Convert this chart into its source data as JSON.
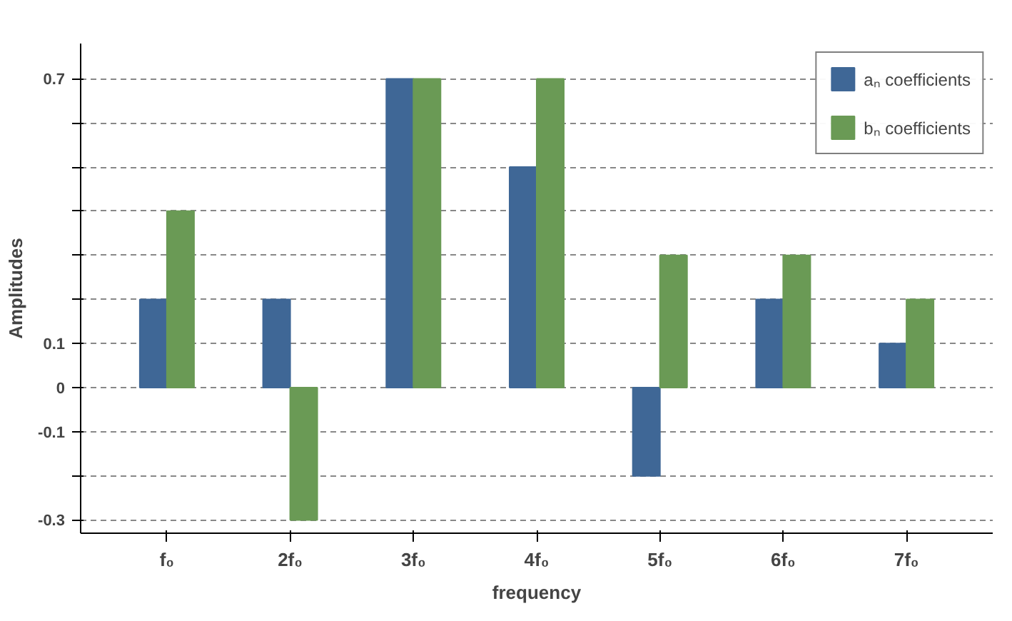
{
  "chart_data": {
    "type": "bar",
    "xlabel": "frequency",
    "ylabel": "Amplitudes",
    "categories": [
      "f₀",
      "2f₀",
      "3f₀",
      "4f₀",
      "5f₀",
      "6f₀",
      "7f₀"
    ],
    "series": [
      {
        "name": "aₙ coefficients",
        "color": "#3f6796",
        "values": [
          0.2,
          0.2,
          0.7,
          0.5,
          -0.2,
          0.2,
          0.1
        ]
      },
      {
        "name": "bₙ coefficients",
        "color": "#6a9a55",
        "values": [
          0.4,
          -0.3,
          0.7,
          0.7,
          0.3,
          0.3,
          0.2
        ]
      }
    ],
    "ylim": [
      -0.33,
      0.78
    ],
    "yticks": [
      {
        "value": -0.3,
        "label": "-0.3"
      },
      {
        "value": -0.2,
        "label": null
      },
      {
        "value": -0.1,
        "label": "-0.1"
      },
      0,
      {
        "value": 0.1,
        "label": "0.1"
      },
      {
        "value": 0.2,
        "label": null
      },
      {
        "value": 0.3,
        "label": null
      },
      {
        "value": 0.4,
        "label": null
      },
      {
        "value": 0.5,
        "label": null
      },
      {
        "value": 0.6,
        "label": null
      },
      {
        "value": 0.7,
        "label": "0.7"
      }
    ],
    "grid": "y",
    "legend": "right"
  }
}
